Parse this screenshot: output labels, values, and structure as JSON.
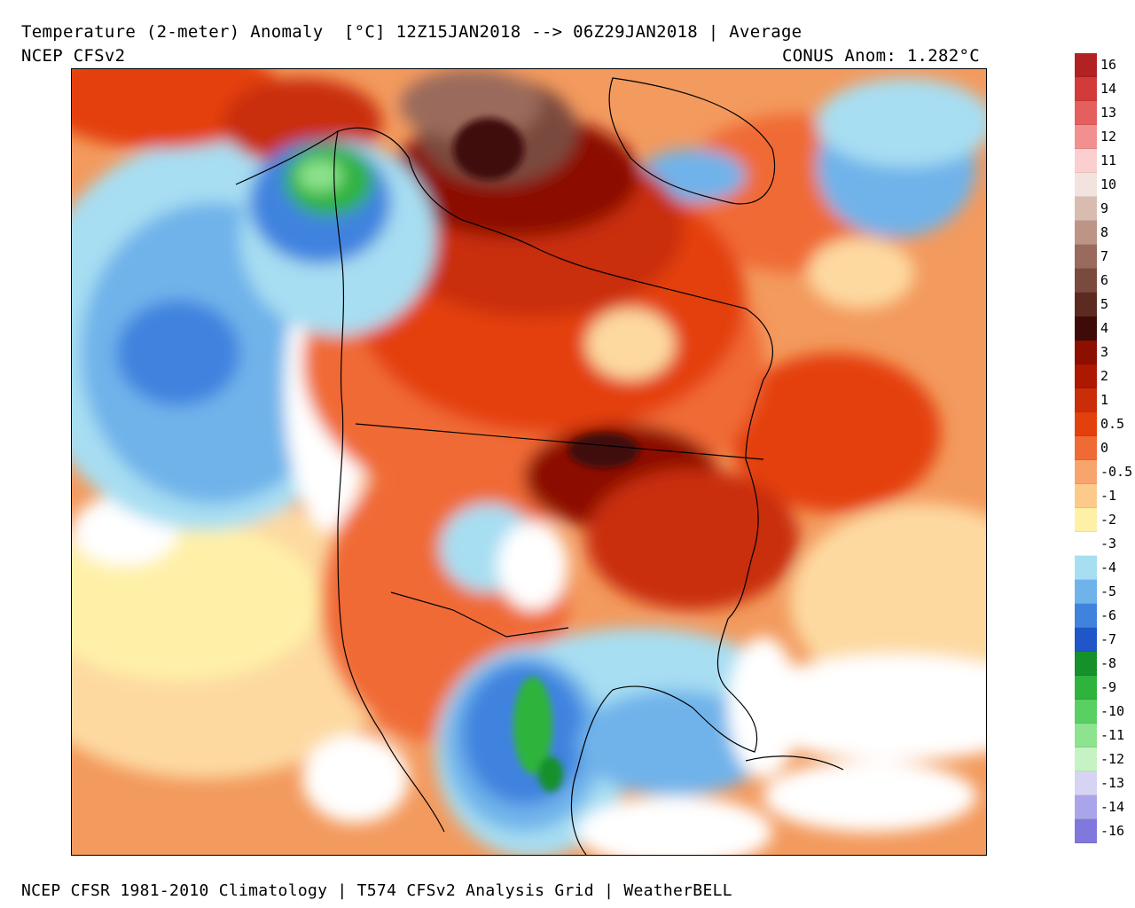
{
  "header": {
    "title": "Temperature (2-meter) Anomaly  [°C] 12Z15JAN2018 --> 06Z29JAN2018 | Average",
    "model": "NCEP CFSv2",
    "conus_anomaly": "CONUS Anom: 1.282°C"
  },
  "footer": {
    "text": "NCEP CFSR 1981-2010 Climatology | T574 CFSv2 Analysis Grid | WeatherBELL"
  },
  "colorbar": {
    "levels": [
      {
        "label": "16",
        "color": "#b22222"
      },
      {
        "label": "14",
        "color": "#d33b3b"
      },
      {
        "label": "13",
        "color": "#e55f5f"
      },
      {
        "label": "12",
        "color": "#f29090"
      },
      {
        "label": "11",
        "color": "#fbcfcf"
      },
      {
        "label": "10",
        "color": "#f2e3de"
      },
      {
        "label": "9",
        "color": "#d9bcb0"
      },
      {
        "label": "8",
        "color": "#bc9586"
      },
      {
        "label": "7",
        "color": "#9a6a5c"
      },
      {
        "label": "6",
        "color": "#7a4a3c"
      },
      {
        "label": "5",
        "color": "#5c2a20"
      },
      {
        "label": "4",
        "color": "#3f0b08"
      },
      {
        "label": "3",
        "color": "#8c0f00"
      },
      {
        "label": "2",
        "color": "#ad1800"
      },
      {
        "label": "1",
        "color": "#c92e09"
      },
      {
        "label": "0.5",
        "color": "#e4400c"
      },
      {
        "label": "0",
        "color": "#f06a36"
      },
      {
        "label": "-0.5",
        "color": "#f7a56c"
      },
      {
        "label": "-1",
        "color": "#fccb8c"
      },
      {
        "label": "-2",
        "color": "#fff0a8"
      },
      {
        "label": "-3",
        "color": "#ffffff"
      },
      {
        "label": "-4",
        "color": "#a7def2"
      },
      {
        "label": "-5",
        "color": "#6fb3ea"
      },
      {
        "label": "-6",
        "color": "#3f83df"
      },
      {
        "label": "-7",
        "color": "#1f56c8"
      },
      {
        "label": "-8",
        "color": "#16902a"
      },
      {
        "label": "-9",
        "color": "#2eb33c"
      },
      {
        "label": "-10",
        "color": "#5ad064"
      },
      {
        "label": "-11",
        "color": "#8ee38e"
      },
      {
        "label": "-12",
        "color": "#c6f3c3"
      },
      {
        "label": "-13",
        "color": "#d6d3f3"
      },
      {
        "label": "-14",
        "color": "#aaa5ea"
      },
      {
        "label": "-16",
        "color": "#8078dc"
      },
      {
        "label": "",
        "color": "#5c4fd0"
      },
      {
        "label": "",
        "color": "#3a2fb8"
      },
      {
        "label": "",
        "color": "#25179a"
      },
      {
        "label": "",
        "color": "#4a0a6a"
      },
      {
        "label": "",
        "color": "#8a1280"
      },
      {
        "label": "",
        "color": "#c21cb0"
      },
      {
        "label": "",
        "color": "#ec3ad6"
      },
      {
        "label": "",
        "color": "#f07ae6"
      },
      {
        "label": "",
        "color": "#f5a5ee"
      }
    ]
  },
  "map": {
    "region": "North America",
    "palette": {
      "ocean_warm": "#f39a5e",
      "pale_warm": "#fdd9a0",
      "yellow": "#fff0a8",
      "white": "#ffffff",
      "light_blue": "#a7def2",
      "mid_blue": "#6fb3ea",
      "blue": "#3f83df",
      "deep_blue": "#1f56c8",
      "green": "#2eb33c",
      "light_green": "#8ee38e",
      "orange": "#f06a36",
      "red_orange": "#e4400c",
      "red": "#c92e09",
      "dark_red": "#8c0f00",
      "maroon": "#3f0b08",
      "brown": "#7a4a3c",
      "brown_light": "#9a6a5c"
    }
  }
}
